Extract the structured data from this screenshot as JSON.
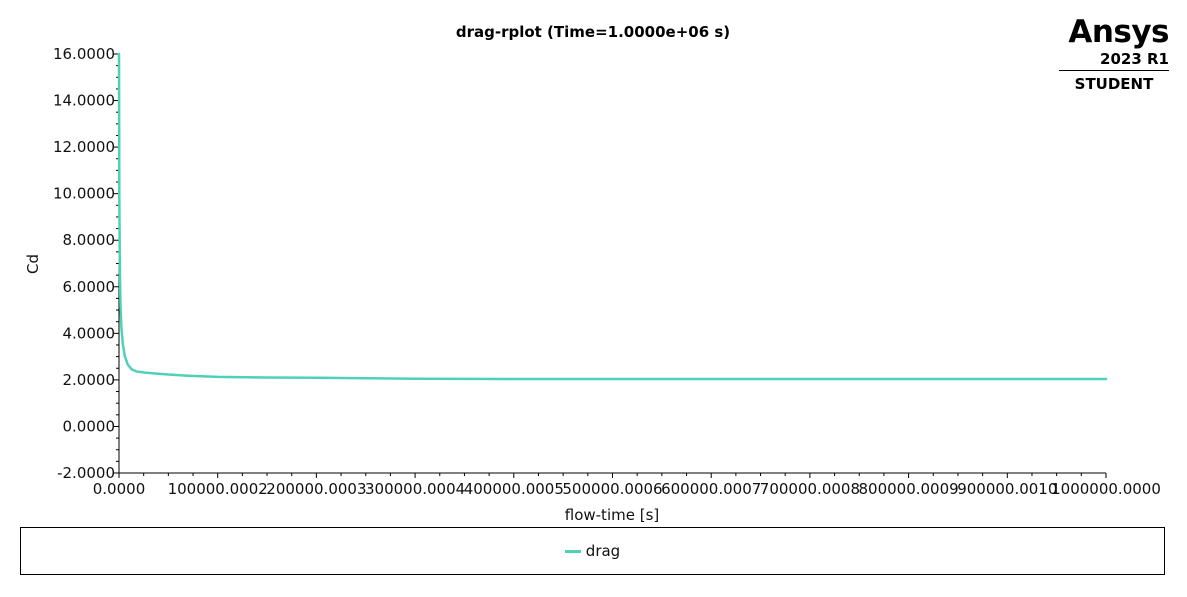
{
  "chart_data": {
    "type": "line",
    "title": "drag-rplot (Time=1.0000e+06 s)",
    "xlabel": "flow-time [s]",
    "ylabel": "Cd",
    "xlim": [
      0,
      1000000
    ],
    "ylim": [
      -2,
      16
    ],
    "xticks": [
      "0.0000",
      "100000.0002",
      "200000.0003",
      "300000.0004",
      "400000.0005",
      "500000.0006",
      "600000.0007",
      "700000.0008",
      "800000.0009",
      "900000.0010",
      "1000000.0000"
    ],
    "xtick_values": [
      0,
      100000,
      200000,
      300000,
      400000,
      500000,
      600000,
      700000,
      800000,
      900000,
      1000000
    ],
    "yticks": [
      "-2.0000",
      "0.0000",
      "2.0000",
      "4.0000",
      "6.0000",
      "8.0000",
      "10.0000",
      "12.0000",
      "14.0000",
      "16.0000"
    ],
    "ytick_values": [
      -2,
      0,
      2,
      4,
      6,
      8,
      10,
      12,
      14,
      16
    ],
    "grid": false,
    "legend_position": "bottom",
    "series": [
      {
        "name": "drag",
        "color": "#4fd1b8",
        "x": [
          0,
          300,
          800,
          1500,
          2500,
          4000,
          6000,
          9000,
          13000,
          18000,
          25000,
          35000,
          50000,
          70000,
          100000,
          150000,
          200000,
          250000,
          300000,
          400000,
          500000,
          600000,
          700000,
          800000,
          900000,
          1000000
        ],
        "y": [
          16.0,
          10.0,
          7.0,
          5.2,
          4.2,
          3.5,
          3.0,
          2.65,
          2.45,
          2.36,
          2.32,
          2.28,
          2.23,
          2.18,
          2.13,
          2.1,
          2.09,
          2.07,
          2.05,
          2.04,
          2.04,
          2.04,
          2.04,
          2.04,
          2.04,
          2.04
        ]
      }
    ]
  },
  "logo": {
    "brand": "Ansys",
    "version": "2023 R1",
    "edition": "STUDENT"
  }
}
